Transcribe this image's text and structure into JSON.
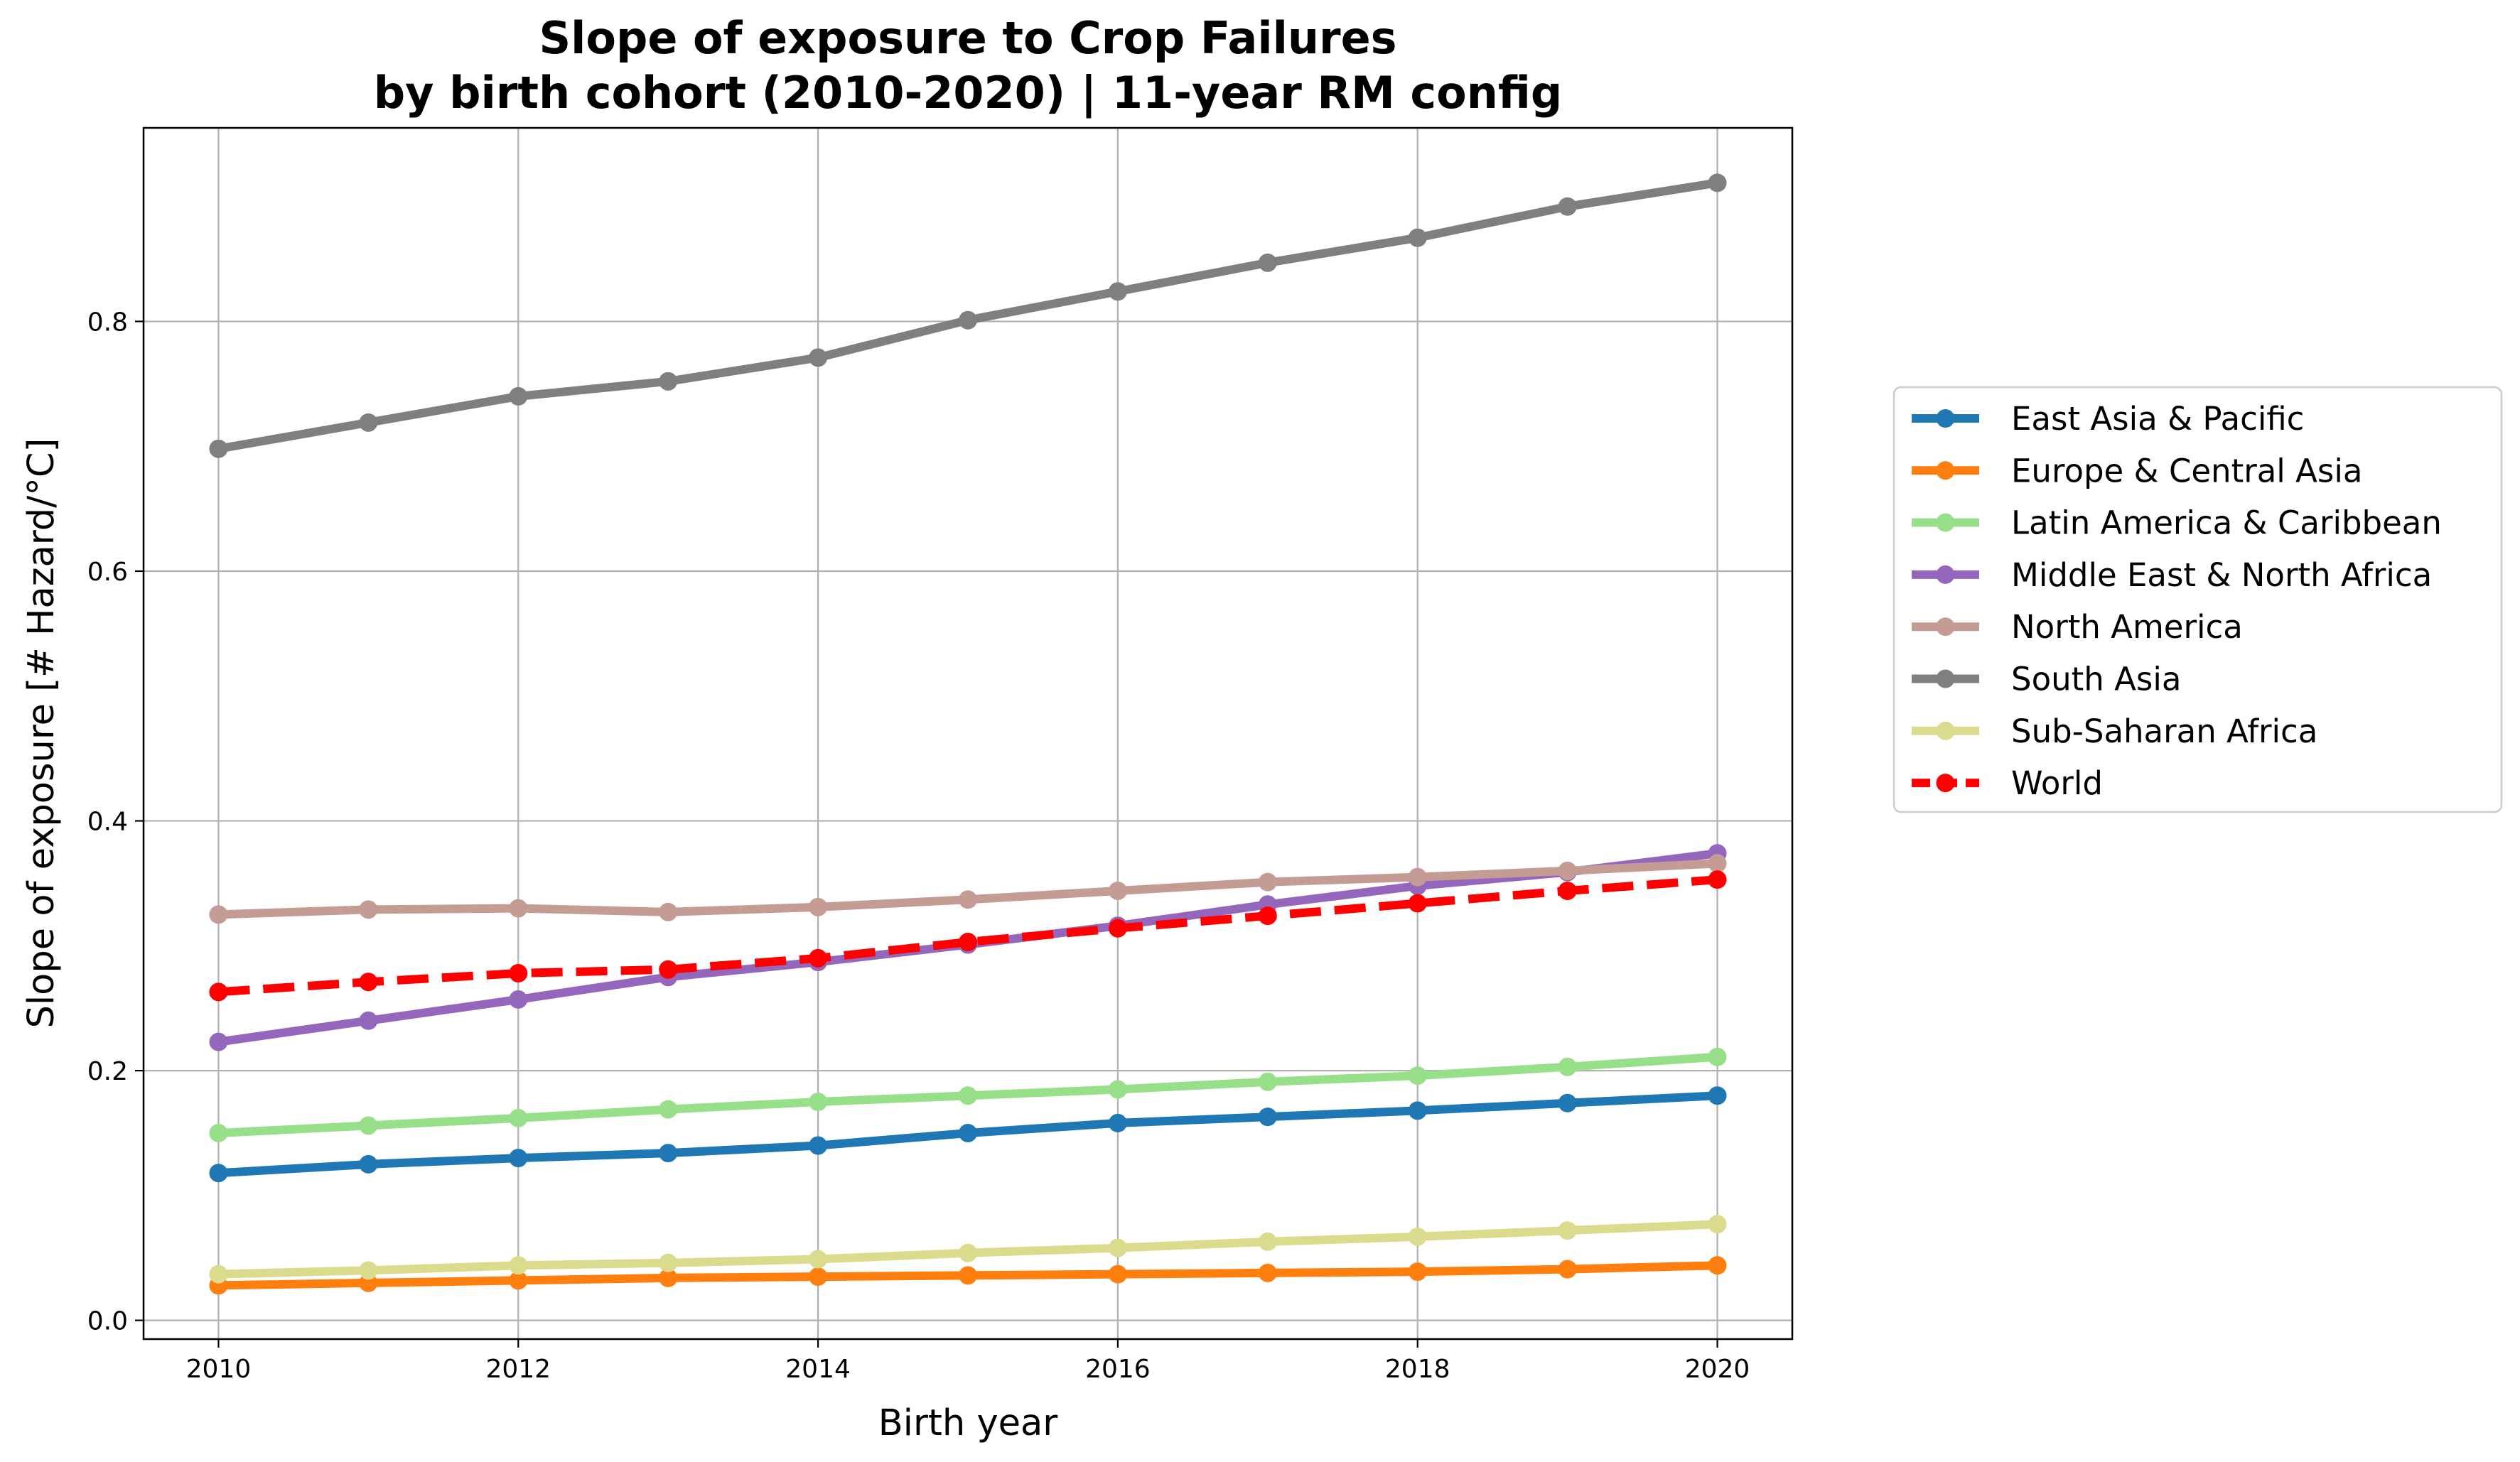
{
  "chart_data": {
    "type": "line",
    "title_line1": "Slope of exposure to Crop Failures",
    "title_line2": "by birth cohort (2010-2020) | 11-year RM config",
    "xlabel": "Birth year",
    "ylabel": "Slope of exposure [# Hazard/°C]",
    "xlim": [
      2009.5,
      2020.5
    ],
    "ylim": [
      -0.015,
      0.955
    ],
    "xticks": [
      2010,
      2012,
      2014,
      2016,
      2018,
      2020
    ],
    "yticks": [
      0.0,
      0.2,
      0.4,
      0.6,
      0.8
    ],
    "ytick_labels": [
      "0.0",
      "0.2",
      "0.4",
      "0.6",
      "0.8"
    ],
    "grid": true,
    "legend_placement": "outside-right",
    "x": [
      2010,
      2011,
      2012,
      2013,
      2014,
      2015,
      2016,
      2017,
      2018,
      2019,
      2020
    ],
    "series": [
      {
        "name": "East Asia & Pacific",
        "color": "#1f77b4",
        "dashed": false,
        "values": [
          0.118,
          0.125,
          0.13,
          0.134,
          0.14,
          0.15,
          0.158,
          0.163,
          0.168,
          0.174,
          0.18
        ]
      },
      {
        "name": "Europe & Central Asia",
        "color": "#ff7f0e",
        "dashed": false,
        "values": [
          0.028,
          0.03,
          0.032,
          0.034,
          0.035,
          0.036,
          0.037,
          0.038,
          0.039,
          0.041,
          0.044
        ]
      },
      {
        "name": "Latin America & Caribbean",
        "color": "#98df8a",
        "dashed": false,
        "values": [
          0.15,
          0.156,
          0.162,
          0.169,
          0.175,
          0.18,
          0.185,
          0.191,
          0.196,
          0.203,
          0.211
        ]
      },
      {
        "name": "Middle East & North Africa",
        "color": "#9467bd",
        "dashed": false,
        "values": [
          0.223,
          0.24,
          0.257,
          0.275,
          0.287,
          0.301,
          0.316,
          0.333,
          0.348,
          0.359,
          0.374
        ]
      },
      {
        "name": "North America",
        "color": "#c49c94",
        "dashed": false,
        "values": [
          0.325,
          0.329,
          0.33,
          0.327,
          0.331,
          0.337,
          0.344,
          0.351,
          0.355,
          0.36,
          0.366
        ]
      },
      {
        "name": "South Asia",
        "color": "#7f7f7f",
        "dashed": false,
        "values": [
          0.698,
          0.719,
          0.74,
          0.752,
          0.771,
          0.801,
          0.824,
          0.847,
          0.867,
          0.892,
          0.911
        ]
      },
      {
        "name": "Sub-Saharan Africa",
        "color": "#dbdb8d",
        "dashed": false,
        "values": [
          0.037,
          0.04,
          0.044,
          0.046,
          0.049,
          0.054,
          0.058,
          0.063,
          0.067,
          0.072,
          0.077
        ]
      },
      {
        "name": "World",
        "color": "#ff0000",
        "dashed": true,
        "values": [
          0.263,
          0.271,
          0.278,
          0.281,
          0.29,
          0.303,
          0.314,
          0.324,
          0.334,
          0.344,
          0.353
        ]
      }
    ]
  }
}
